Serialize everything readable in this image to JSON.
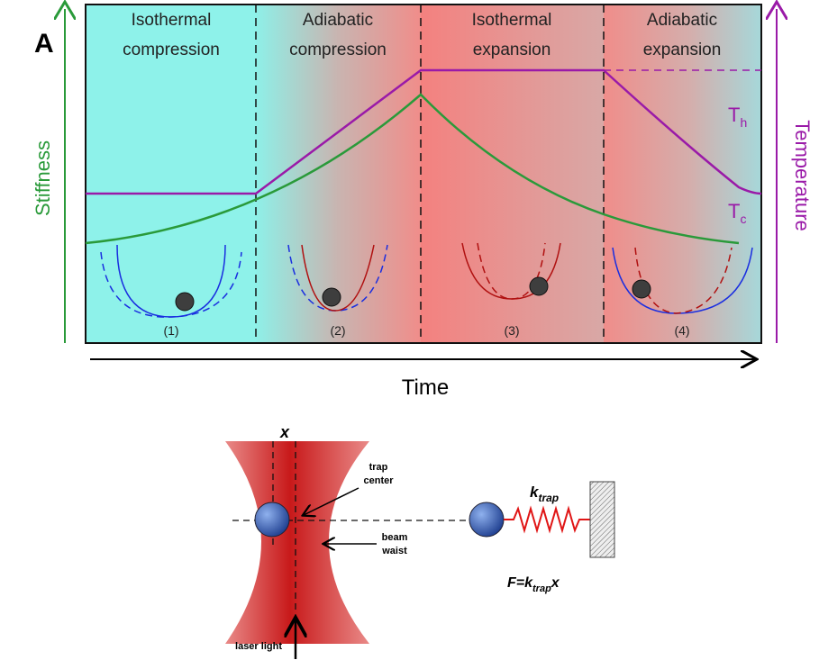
{
  "panel_label": "A",
  "phases": [
    {
      "lines": [
        "Isothermal",
        "compression"
      ],
      "step": "(1)"
    },
    {
      "lines": [
        "Adiabatic",
        "compression"
      ],
      "step": "(2)"
    },
    {
      "lines": [
        "Isothermal",
        "expansion"
      ],
      "step": "(3)"
    },
    {
      "lines": [
        "Adiabatic",
        "expansion"
      ],
      "step": "(4)"
    }
  ],
  "axes": {
    "left": "Stiffness",
    "right": "Temperature",
    "bottom": "Time"
  },
  "temperature_levels": {
    "hot": {
      "base": "T",
      "sub": "h"
    },
    "cold": {
      "base": "T",
      "sub": "c"
    }
  },
  "trap_diagram": {
    "position": "x",
    "trap_center": [
      "trap",
      "center"
    ],
    "beam_waist": [
      "beam",
      "waist"
    ],
    "laser": "laser light",
    "spring_constant": {
      "base": "k",
      "sub": "trap"
    },
    "force": {
      "lhs": "F=k",
      "sub": "trap",
      "rhs": "x"
    }
  }
}
